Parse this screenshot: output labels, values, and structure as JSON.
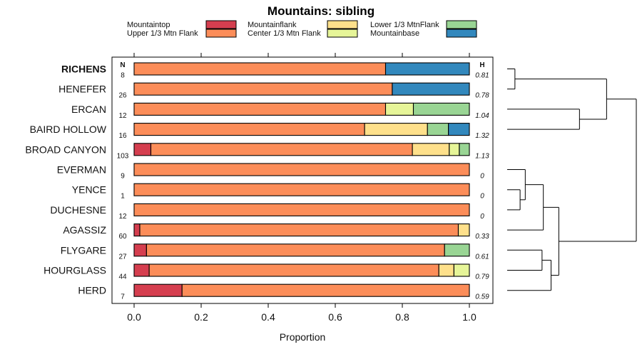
{
  "chart_data": {
    "type": "bar",
    "orientation": "horizontal",
    "stacked": true,
    "title": "Mountains: sibling",
    "xlabel": "Proportion",
    "xlim": [
      0,
      1
    ],
    "xticks": [
      "0.0",
      "0.2",
      "0.4",
      "0.6",
      "0.8",
      "1.0"
    ],
    "n_header": "N",
    "h_header": "H",
    "highlight_category": "RICHENS",
    "legend": [
      {
        "name": "Mountaintop",
        "color": "#d53e4f"
      },
      {
        "name": "Upper 1/3 Mtn Flank",
        "color": "#fc8d59"
      },
      {
        "name": "Mountainflank",
        "color": "#fee08b"
      },
      {
        "name": "Center 1/3 Mtn Flank",
        "color": "#e6f598"
      },
      {
        "name": "Lower 1/3 MtnFlank",
        "color": "#99d594"
      },
      {
        "name": "Mountainbase",
        "color": "#3288bd"
      }
    ],
    "categories": [
      "RICHENS",
      "HENEFER",
      "ERCAN",
      "BAIRD HOLLOW",
      "BROAD CANYON",
      "EVERMAN",
      "YENCE",
      "DUCHESNE",
      "AGASSIZ",
      "FLYGARE",
      "HOURGLASS",
      "HERD"
    ],
    "n": [
      "8",
      "26",
      "12",
      "16",
      "103",
      "9",
      "1",
      "12",
      "60",
      "27",
      "44",
      "7"
    ],
    "h": [
      "0.81",
      "0.78",
      "1.04",
      "1.32",
      "1.13",
      "0",
      "0",
      "0",
      "0.33",
      "0.61",
      "0.79",
      "0.59"
    ],
    "series": [
      {
        "name": "Mountaintop",
        "values": [
          0,
          0,
          0,
          0,
          0.05,
          0,
          0,
          0,
          0.017,
          0.037,
          0.045,
          0.143
        ]
      },
      {
        "name": "Upper 1/3 Mtn Flank",
        "values": [
          0.75,
          0.77,
          0.75,
          0.6875,
          0.78,
          1,
          1,
          1,
          0.95,
          0.889,
          0.864,
          0.857
        ]
      },
      {
        "name": "Mountainflank",
        "values": [
          0,
          0,
          0,
          0.1875,
          0.11,
          0,
          0,
          0,
          0.033,
          0,
          0.045,
          0
        ]
      },
      {
        "name": "Center 1/3 Mtn Flank",
        "values": [
          0,
          0,
          0.083,
          0,
          0.03,
          0,
          0,
          0,
          0,
          0,
          0.046,
          0
        ]
      },
      {
        "name": "Lower 1/3 MtnFlank",
        "values": [
          0,
          0,
          0.167,
          0.0625,
          0.03,
          0,
          0,
          0,
          0,
          0.074,
          0,
          0
        ]
      },
      {
        "name": "Mountainbase",
        "values": [
          0.25,
          0.23,
          0,
          0.0625,
          0,
          0,
          0,
          0,
          0,
          0,
          0,
          0
        ]
      }
    ],
    "dendrogram": {
      "description": "hierarchical clustering of the rows, leaves in row order",
      "merges": [
        {
          "left": "RICHENS",
          "right": "HENEFER",
          "height": 0.06
        },
        {
          "left": "ERCAN",
          "right": "BAIRD HOLLOW",
          "height": 0.56
        },
        {
          "left": "m1",
          "right": "m2",
          "height": 0.77
        },
        {
          "left": "YENCE",
          "right": "DUCHESNE",
          "height": 0.1
        },
        {
          "left": "EVERMAN",
          "right": "m4",
          "height": 0.14
        },
        {
          "left": "m5",
          "right": "AGASSIZ",
          "height": 0.28
        },
        {
          "left": "FLYGARE",
          "right": "HOURGLASS",
          "height": 0.27
        },
        {
          "left": "m7",
          "right": "HERD",
          "height": 0.34
        },
        {
          "left": "m6",
          "right": "m8",
          "height": 0.4
        },
        {
          "left": "m3",
          "right": "m9",
          "height": 1.0
        }
      ]
    }
  }
}
